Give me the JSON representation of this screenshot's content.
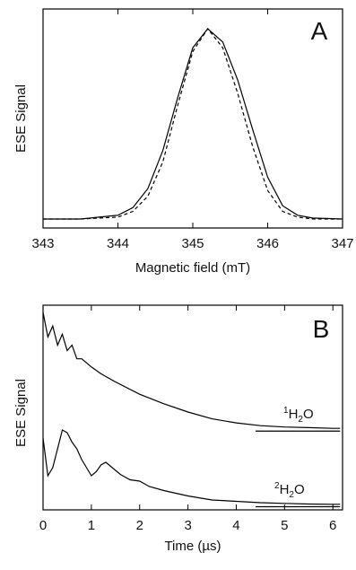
{
  "chart_data": [
    {
      "panel": "A",
      "type": "line",
      "xlabel": "Magnetic field (mT)",
      "ylabel": "ESE Signal",
      "xlim": [
        343,
        347
      ],
      "x_ticks": [
        "343",
        "344",
        "345",
        "346",
        "347"
      ],
      "ylim": [
        0,
        1.05
      ],
      "y_ticks": [],
      "grid": false,
      "series": [
        {
          "style": "solid",
          "x": [
            343.0,
            343.5,
            344.0,
            344.2,
            344.4,
            344.6,
            344.8,
            345.0,
            345.2,
            345.4,
            345.6,
            345.8,
            346.0,
            346.2,
            346.4,
            346.6,
            347.0
          ],
          "values": [
            0.0,
            0.0,
            0.02,
            0.06,
            0.16,
            0.36,
            0.64,
            0.9,
            1.0,
            0.93,
            0.73,
            0.47,
            0.22,
            0.07,
            0.02,
            0.005,
            0.0
          ]
        },
        {
          "style": "dashed",
          "x": [
            343.0,
            343.5,
            344.0,
            344.2,
            344.4,
            344.6,
            344.8,
            345.0,
            345.2,
            345.4,
            345.6,
            345.8,
            346.0,
            346.2,
            346.4,
            346.6,
            347.0
          ],
          "values": [
            0.0,
            0.0,
            0.01,
            0.04,
            0.12,
            0.3,
            0.6,
            0.88,
            1.0,
            0.9,
            0.66,
            0.38,
            0.15,
            0.04,
            0.01,
            0.0,
            0.0
          ]
        }
      ]
    },
    {
      "panel": "B",
      "type": "line",
      "xlabel": "Time (µs)",
      "ylabel": "ESE Signal",
      "xlim": [
        0,
        6.2
      ],
      "x_ticks": [
        "0",
        "1",
        "2",
        "3",
        "4",
        "5",
        "6"
      ],
      "y_ticks": [],
      "grid": false,
      "series": [
        {
          "name": "1H2O",
          "x": [
            0.0,
            0.1,
            0.2,
            0.3,
            0.4,
            0.5,
            0.6,
            0.7,
            0.8,
            1.0,
            1.2,
            1.5,
            2.0,
            2.5,
            3.0,
            3.5,
            4.0,
            4.5,
            5.0,
            5.5,
            6.0,
            6.15
          ],
          "values": [
            1.0,
            0.82,
            0.9,
            0.76,
            0.84,
            0.72,
            0.76,
            0.66,
            0.66,
            0.6,
            0.55,
            0.49,
            0.4,
            0.33,
            0.27,
            0.22,
            0.19,
            0.17,
            0.16,
            0.155,
            0.15,
            0.15
          ],
          "baseline": 0.13
        },
        {
          "name": "2H2O",
          "x": [
            0.0,
            0.1,
            0.2,
            0.3,
            0.4,
            0.5,
            0.6,
            0.7,
            0.8,
            0.9,
            1.0,
            1.1,
            1.2,
            1.3,
            1.4,
            1.5,
            1.6,
            1.7,
            1.8,
            2.0,
            2.2,
            2.5,
            3.0,
            3.5,
            4.0,
            4.5,
            5.0,
            5.5,
            6.0,
            6.15
          ],
          "values": [
            0.58,
            0.3,
            0.36,
            0.5,
            0.64,
            0.62,
            0.55,
            0.5,
            0.42,
            0.36,
            0.3,
            0.33,
            0.38,
            0.4,
            0.37,
            0.34,
            0.31,
            0.29,
            0.27,
            0.26,
            0.22,
            0.19,
            0.15,
            0.12,
            0.11,
            0.1,
            0.095,
            0.09,
            0.088,
            0.088
          ],
          "baseline": 0.07
        }
      ],
      "series_labels": [
        {
          "sup": "1",
          "base": "H",
          "sub": "2",
          "rest": "O"
        },
        {
          "sup": "2",
          "base": "H",
          "sub": "2",
          "rest": "O"
        }
      ]
    }
  ],
  "labels": {
    "panel_a": "A",
    "panel_b": "B"
  }
}
